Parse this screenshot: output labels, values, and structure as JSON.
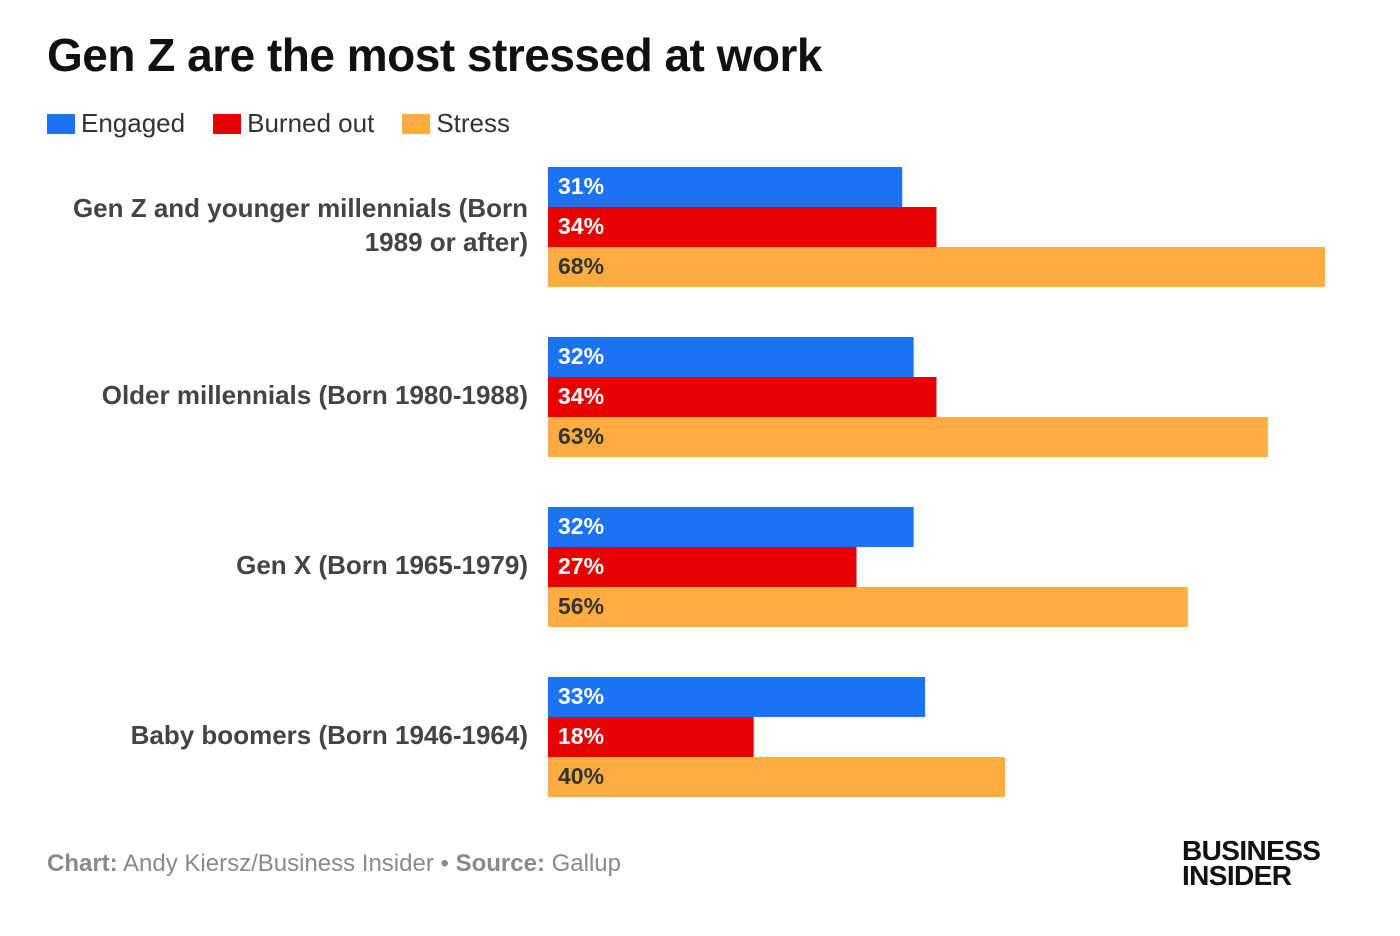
{
  "title": "Gen Z are the most stressed at work",
  "legend": [
    {
      "label": "Engaged",
      "color": "#1a73f0"
    },
    {
      "label": "Burned out",
      "color": "#e60000"
    },
    {
      "label": "Stress",
      "color": "#ffad40"
    }
  ],
  "chart_data": {
    "type": "bar",
    "orientation": "horizontal",
    "title": "Gen Z are the most stressed at work",
    "categories": [
      "Gen Z and younger millennials (Born 1989 or after)",
      "Older millennials (Born 1980-1988)",
      "Gen X (Born 1965-1979)",
      "Baby boomers (Born 1946-1964)"
    ],
    "series": [
      {
        "name": "Engaged",
        "color": "#1a73f0",
        "values": [
          31,
          32,
          32,
          33
        ],
        "labels": [
          "31%",
          "32%",
          "32%",
          "33%"
        ]
      },
      {
        "name": "Burned out",
        "color": "#e60000",
        "values": [
          34,
          34,
          27,
          18
        ],
        "labels": [
          "34%",
          "34%",
          "27%",
          "18%"
        ]
      },
      {
        "name": "Stress",
        "color": "#ffad40",
        "values": [
          68,
          63,
          56,
          40
        ],
        "labels": [
          "68%",
          "63%",
          "56%",
          "40%"
        ]
      }
    ],
    "xlim": [
      0,
      68
    ],
    "unit": "%",
    "grid": false,
    "legend_position": "top-left"
  },
  "footer": {
    "chart_label": "Chart:",
    "chart_credit": "Andy Kiersz/Business Insider",
    "separator": "•",
    "source_label": "Source:",
    "source": "Gallup"
  },
  "logo": {
    "line1": "BUSINESS",
    "line2": "INSIDER"
  }
}
